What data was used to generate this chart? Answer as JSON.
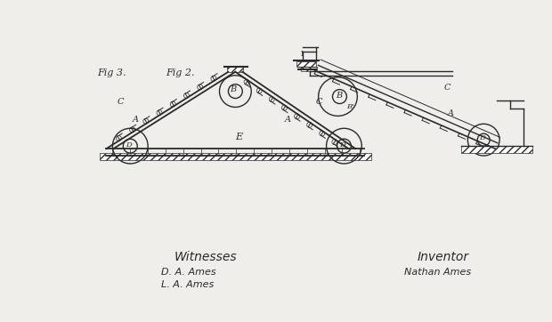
{
  "bg_color": "#f0eeea",
  "line_color": "#2a2a2a",
  "hatch_color": "#2a2a2a",
  "fig_label_1": "Fig 2.",
  "fig_label_2": "Fig 3.",
  "witnesses_label": "Witnesses",
  "witness1": "D. A. Ames",
  "witness2": "L. A. Ames",
  "inventor_label": "Inventor",
  "inventor_name": "Nathan Ames",
  "title_fontsize": 9,
  "sig_fontsize": 8,
  "lw": 1.0
}
